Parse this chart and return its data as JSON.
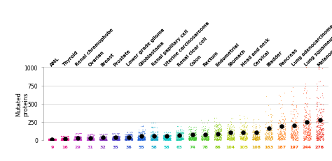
{
  "categories": [
    "AML",
    "Thyroid",
    "Renal chromophobe",
    "Ovarian",
    "Breast",
    "Prostate",
    "Lower grade glioma",
    "Glioblastoma",
    "Renal papillary cell",
    "Uterine carcinosarcoma",
    "Renal clear cell",
    "Colon",
    "Rectum",
    "Endometrial",
    "Stomach",
    "Head and neck",
    "Cervical",
    "Bladder",
    "Pancreas",
    "Lung adenocarcinoma",
    "Lung squamous cell",
    "Melanoma"
  ],
  "medians": [
    9,
    16,
    29,
    31,
    32,
    35,
    36,
    55,
    58,
    58,
    63,
    74,
    78,
    86,
    104,
    105,
    108,
    163,
    187,
    197,
    244,
    276
  ],
  "colors": [
    "#e8198b",
    "#e8198b",
    "#cc44cc",
    "#bb44cc",
    "#8833bb",
    "#5544cc",
    "#3355cc",
    "#2266dd",
    "#11aacc",
    "#11cccc",
    "#11ccaa",
    "#44cc33",
    "#55cc22",
    "#88cc11",
    "#aacc00",
    "#cccc00",
    "#ddaa00",
    "#ee9900",
    "#ff7700",
    "#ff5500",
    "#ff3300",
    "#ee1100"
  ],
  "n_samples": [
    9,
    16,
    29,
    31,
    32,
    35,
    36,
    55,
    58,
    58,
    63,
    74,
    78,
    86,
    104,
    105,
    108,
    163,
    187,
    197,
    244,
    276
  ],
  "ylim": [
    0,
    1000
  ],
  "yticks": [
    0,
    250,
    500,
    750,
    1000
  ],
  "ylabel": "Mutated\nproteins",
  "background_color": "#ffffff",
  "label_fontsize": 4.8,
  "n_fontsize": 4.5
}
